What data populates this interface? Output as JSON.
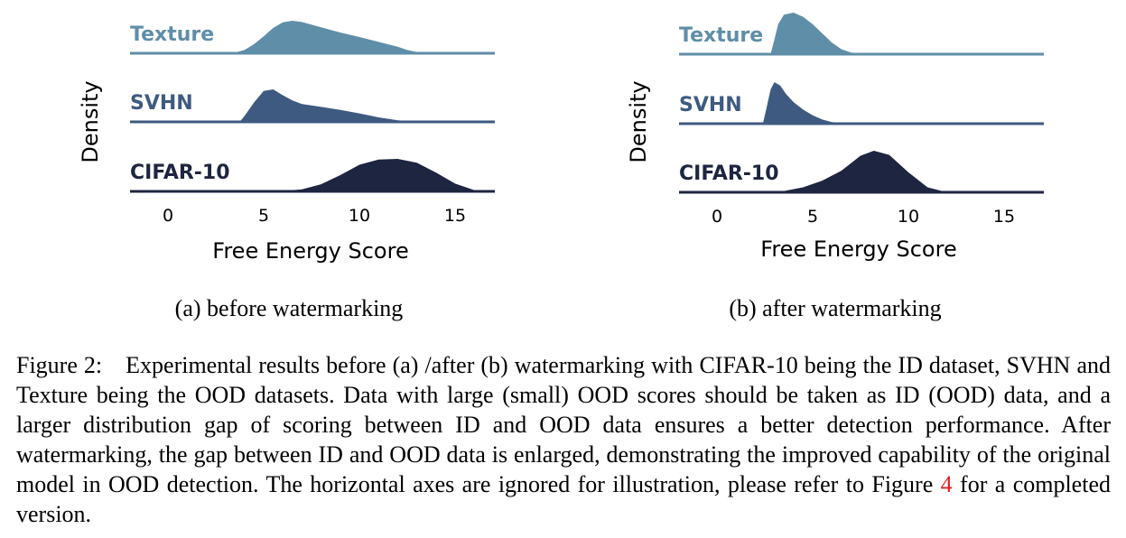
{
  "panels": [
    {
      "sublabel": "(a) before watermarking",
      "xlabel": "Free Energy Score",
      "ylabel": "Density",
      "xticks": [
        "0",
        "5",
        "10",
        "15"
      ]
    },
    {
      "sublabel": "(b) after watermarking",
      "xlabel": "Free Energy Score",
      "ylabel": "Density",
      "xticks": [
        "0",
        "5",
        "10",
        "15"
      ]
    }
  ],
  "caption": {
    "prefix": "Figure 2: Experimental results before (a) /after (b) watermarking with CIFAR-10 being the ID dataset, SVHN and Texture being the OOD datasets. Data with large (small) OOD scores should be taken as ID (OOD) data, and a larger distribution gap of scoring between ID and OOD data ensures a better detection performance. After watermarking, the gap between ID and OOD data is enlarged, demonstrating the improved capability of the original model in OOD detection. The horizontal axes are ignored for illustration, please refer to Figure ",
    "ref": "4",
    "suffix": " for a completed version."
  },
  "chart_data": [
    {
      "type": "area",
      "title": "",
      "subtitle": "(a) before watermarking",
      "xlabel": "Free Energy Score",
      "ylabel": "Density",
      "xlim": [
        -2,
        17
      ],
      "xticks": [
        0,
        5,
        10,
        15
      ],
      "grid": false,
      "legend": "none",
      "series": [
        {
          "name": "Texture",
          "color": "#5f8ea8",
          "x": [
            -2,
            3.0,
            3.5,
            4.0,
            4.5,
            5.0,
            5.5,
            6.0,
            6.5,
            7.0,
            8.0,
            9.0,
            10.0,
            11.0,
            12.0,
            12.5,
            13.0,
            14.0,
            15.0,
            17.0
          ],
          "y": [
            0,
            0,
            0.02,
            0.1,
            0.28,
            0.52,
            0.78,
            0.95,
            1.0,
            0.96,
            0.8,
            0.64,
            0.5,
            0.35,
            0.2,
            0.1,
            0.04,
            0.01,
            0,
            0
          ]
        },
        {
          "name": "SVHN",
          "color": "#3e5a80",
          "x": [
            -2,
            3.5,
            3.8,
            4.0,
            4.5,
            5.0,
            5.5,
            6.0,
            6.5,
            7.0,
            8.0,
            9.0,
            10.0,
            11.0,
            12.0,
            13.0,
            15.0,
            17.0
          ],
          "y": [
            0,
            0,
            0.04,
            0.18,
            0.6,
            0.95,
            1.0,
            0.82,
            0.66,
            0.55,
            0.46,
            0.37,
            0.26,
            0.14,
            0.05,
            0.01,
            0,
            0
          ]
        },
        {
          "name": "CIFAR-10",
          "color": "#1e2540",
          "x": [
            -2,
            5.0,
            6.0,
            7.0,
            8.0,
            9.0,
            10.0,
            11.0,
            12.0,
            13.0,
            14.0,
            15.0,
            16.0,
            17.0
          ],
          "y": [
            0,
            0,
            0.01,
            0.06,
            0.22,
            0.5,
            0.82,
            0.98,
            1.0,
            0.88,
            0.58,
            0.24,
            0.04,
            0
          ]
        }
      ]
    },
    {
      "type": "area",
      "title": "",
      "subtitle": "(b) after watermarking",
      "xlabel": "Free Energy Score",
      "ylabel": "Density",
      "xlim": [
        -2,
        17
      ],
      "xticks": [
        0,
        5,
        10,
        15
      ],
      "grid": false,
      "legend": "none",
      "series": [
        {
          "name": "Texture",
          "color": "#5f8ea8",
          "x": [
            -2,
            2.8,
            3.0,
            3.2,
            3.5,
            4.0,
            4.5,
            5.0,
            5.5,
            6.0,
            6.5,
            7.0,
            8.0,
            17.0
          ],
          "y": [
            0,
            0,
            0.35,
            0.72,
            0.95,
            1.0,
            0.9,
            0.72,
            0.5,
            0.28,
            0.12,
            0.04,
            0,
            0
          ]
        },
        {
          "name": "SVHN",
          "color": "#3e5a80",
          "x": [
            -2,
            2.4,
            2.6,
            2.8,
            3.0,
            3.3,
            3.6,
            4.0,
            4.5,
            5.0,
            5.5,
            6.0,
            7.0,
            17.0
          ],
          "y": [
            0,
            0,
            0.4,
            0.82,
            1.0,
            0.92,
            0.72,
            0.52,
            0.34,
            0.2,
            0.1,
            0.04,
            0,
            0
          ]
        },
        {
          "name": "CIFAR-10",
          "color": "#1e2540",
          "x": [
            -2,
            2.5,
            3.5,
            4.5,
            5.5,
            6.5,
            7.5,
            8.2,
            9.0,
            10.0,
            11.0,
            12.0,
            17.0
          ],
          "y": [
            0,
            0,
            0.03,
            0.12,
            0.28,
            0.52,
            0.88,
            1.0,
            0.9,
            0.48,
            0.12,
            0,
            0
          ]
        }
      ]
    }
  ]
}
